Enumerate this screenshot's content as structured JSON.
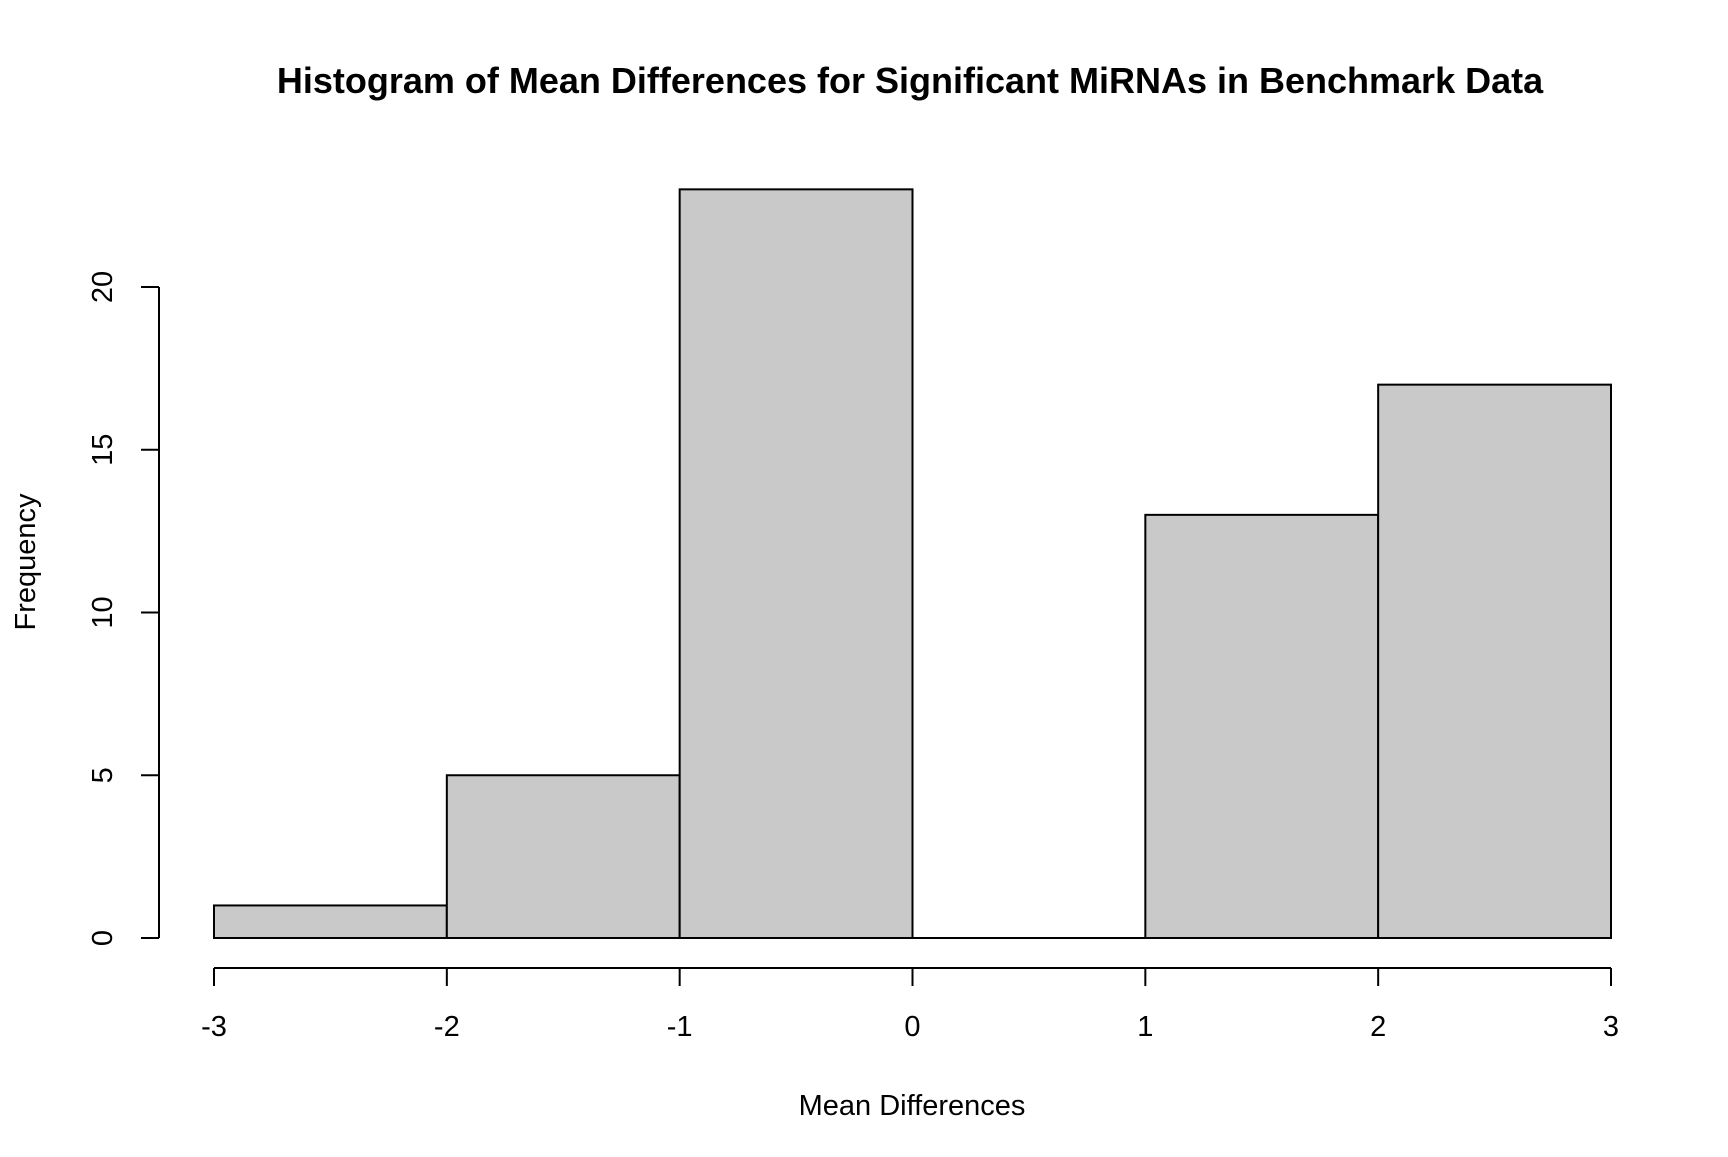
{
  "chart_data": {
    "type": "bar",
    "title": "Histogram of Mean Differences for Significant MiRNAs in Benchmark Data",
    "xlabel": "Mean Differences",
    "ylabel": "Frequency",
    "bins": [
      {
        "from": -3,
        "to": -2,
        "count": 1
      },
      {
        "from": -2,
        "to": -1,
        "count": 5
      },
      {
        "from": -1,
        "to": 0,
        "count": 23
      },
      {
        "from": 0,
        "to": 1,
        "count": 0
      },
      {
        "from": 1,
        "to": 2,
        "count": 13
      },
      {
        "from": 2,
        "to": 3,
        "count": 17
      }
    ],
    "x_ticks": [
      "-3",
      "-2",
      "-1",
      "0",
      "1",
      "2",
      "3"
    ],
    "y_ticks": [
      "0",
      "5",
      "10",
      "15",
      "20"
    ],
    "xlim": [
      -3,
      3
    ],
    "ylim": [
      0,
      23
    ],
    "grid": false,
    "bar_color": "#c9c9c9",
    "border_color": "#000000"
  }
}
